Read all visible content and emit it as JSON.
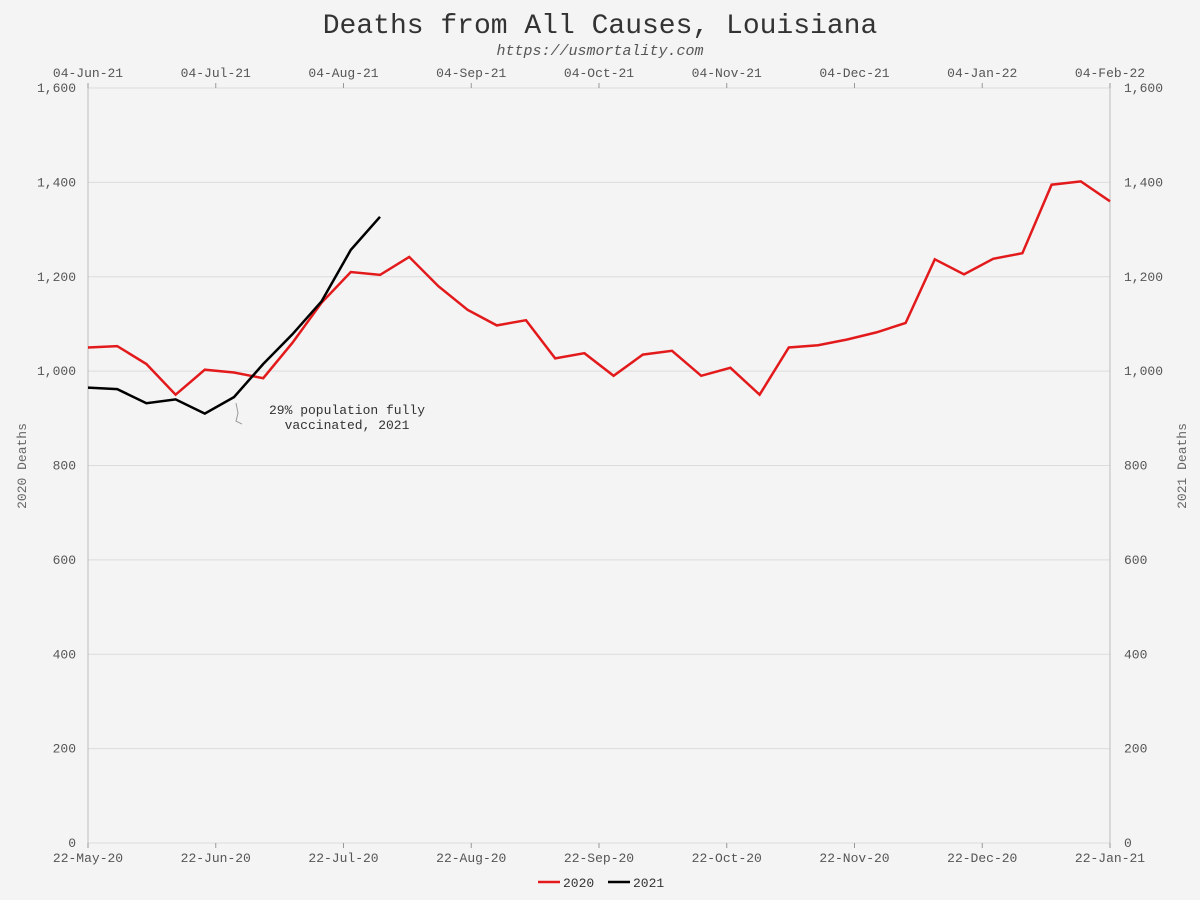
{
  "chart_data": {
    "type": "line",
    "title": "Deaths from All Causes, Louisiana",
    "subtitle": "https://usmortality.com",
    "ylabel_left": "2020 Deaths",
    "ylabel_right": "2021 Deaths",
    "ylim": [
      0,
      1600
    ],
    "yticks": [
      "0",
      "200",
      "400",
      "600",
      "800",
      "1,000",
      "1,200",
      "1,400",
      "1,600"
    ],
    "ytick_values": [
      0,
      200,
      400,
      600,
      800,
      1000,
      1200,
      1400,
      1600
    ],
    "x_bottom_ticks": [
      "22-May-20",
      "22-Jun-20",
      "22-Jul-20",
      "22-Aug-20",
      "22-Sep-20",
      "22-Oct-20",
      "22-Nov-20",
      "22-Dec-20",
      "22-Jan-21"
    ],
    "x_top_ticks": [
      "04-Jun-21",
      "04-Jul-21",
      "04-Aug-21",
      "04-Sep-21",
      "04-Oct-21",
      "04-Nov-21",
      "04-Dec-21",
      "04-Jan-22",
      "04-Feb-22"
    ],
    "legend_position": "bottom-center",
    "series": [
      {
        "name": "2020",
        "color": "#e31a1c",
        "values": [
          1050,
          1053,
          1015,
          950,
          1003,
          997,
          985,
          1060,
          1145,
          1210,
          1204,
          1242,
          1180,
          1130,
          1097,
          1108,
          1027,
          1038,
          990,
          1035,
          1043,
          990,
          1007,
          950,
          1050,
          1055,
          1067,
          1082,
          1102,
          1237,
          1205,
          1238,
          1250,
          1395,
          1402,
          1360
        ]
      },
      {
        "name": "2021",
        "color": "#000000",
        "values": [
          965,
          962,
          932,
          940,
          910,
          945,
          1015,
          1078,
          1148,
          1257,
          1327
        ]
      }
    ],
    "annotation": {
      "line1": "29% population fully",
      "line2": "vaccinated, 2021",
      "series": "2021",
      "point_index": 5
    }
  }
}
